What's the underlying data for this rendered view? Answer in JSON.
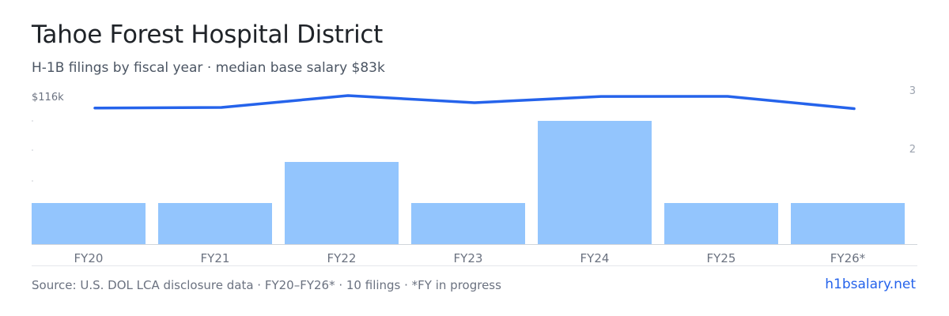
{
  "header": {
    "title": "Tahoe Forest Hospital District",
    "subtitle": "H-1B filings by fiscal year · median base salary $83k"
  },
  "footer": {
    "source": "Source: U.S. DOL LCA disclosure data · FY20–FY26* · 10 filings · *FY in progress",
    "brand": "h1bsalary.net"
  },
  "colors": {
    "bar": "#93c5fd",
    "line": "#2563eb",
    "axis_text": "#6b7280",
    "right_axis_text": "#9ca3af",
    "baseline": "#d1d5db"
  },
  "chart_data": {
    "type": "bar",
    "categories": [
      "FY20",
      "FY21",
      "FY22",
      "FY23",
      "FY24",
      "FY25",
      "FY26*"
    ],
    "series": [
      {
        "type": "bar",
        "axis": "right",
        "values": [
          1,
          1,
          2,
          1,
          3,
          1,
          1
        ]
      },
      {
        "type": "line",
        "axis": "left",
        "values": [
          95000,
          96000,
          116000,
          104000,
          114500,
          114700,
          94000
        ]
      }
    ],
    "left_axis": {
      "tick_label": "$116k",
      "tick_value": 116000
    },
    "right_axis": {
      "ticks": [
        2,
        3
      ]
    },
    "grid": false
  }
}
